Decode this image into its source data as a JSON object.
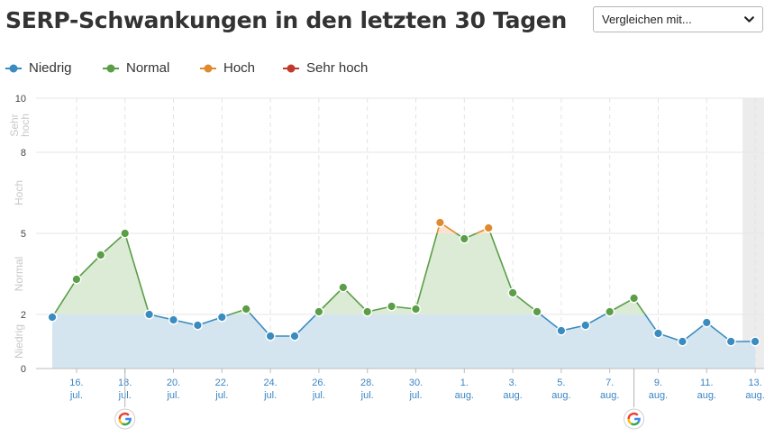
{
  "header": {
    "title": "SERP-Schwankungen in den letzten 30 Tagen",
    "compare_label": "Vergleichen mit..."
  },
  "legend": [
    {
      "label": "Niedrig",
      "color": "#3a8cc0"
    },
    {
      "label": "Normal",
      "color": "#5a9e48"
    },
    {
      "label": "Hoch",
      "color": "#e08a30"
    },
    {
      "label": "Sehr hoch",
      "color": "#c0392b"
    }
  ],
  "colors": {
    "niedrig": "#3a8cc0",
    "normal": "#5a9e48",
    "hoch": "#e08a30",
    "sehr_hoch": "#c0392b",
    "fill_low": "#d5e5f0",
    "fill_normal": "#dcebd5",
    "fill_hoch": "#fbe3cf",
    "tick_text": "#3a86c4",
    "band_text": "#c8c8c8"
  },
  "chart_data": {
    "type": "line",
    "title": "SERP-Schwankungen in den letzten 30 Tagen",
    "ylim": [
      0,
      10
    ],
    "y_ticks": [
      "0",
      "2",
      "5",
      "8",
      "10"
    ],
    "y_bands": [
      "Niedrig",
      "Normal",
      "Hoch",
      "Sehr hoch"
    ],
    "x_tick_labels": [
      [
        "16.",
        "jul."
      ],
      [
        "18.",
        "jul."
      ],
      [
        "20.",
        "jul."
      ],
      [
        "22.",
        "jul."
      ],
      [
        "24.",
        "jul."
      ],
      [
        "26.",
        "jul."
      ],
      [
        "28.",
        "jul."
      ],
      [
        "30.",
        "jul."
      ],
      [
        "1.",
        "aug."
      ],
      [
        "3.",
        "aug."
      ],
      [
        "5.",
        "aug."
      ],
      [
        "7.",
        "aug."
      ],
      [
        "9.",
        "aug."
      ],
      [
        "11.",
        "aug."
      ],
      [
        "13.",
        "aug."
      ]
    ],
    "dates": [
      "15. jul.",
      "16. jul.",
      "17. jul.",
      "18. jul.",
      "19. jul.",
      "20. jul.",
      "21. jul.",
      "22. jul.",
      "23. jul.",
      "24. jul.",
      "25. jul.",
      "26. jul.",
      "27. jul.",
      "28. jul.",
      "29. jul.",
      "30. jul.",
      "31. jul.",
      "1. aug.",
      "2. aug.",
      "3. aug.",
      "4. aug.",
      "5. aug.",
      "6. aug.",
      "7. aug.",
      "8. aug.",
      "9. aug.",
      "10. aug.",
      "11. aug.",
      "12. aug.",
      "13. aug."
    ],
    "values": [
      1.9,
      3.3,
      4.2,
      5.0,
      2.0,
      1.8,
      1.6,
      1.9,
      2.2,
      1.2,
      1.2,
      2.1,
      3.0,
      2.1,
      2.3,
      2.2,
      5.4,
      4.8,
      5.2,
      2.8,
      2.1,
      1.4,
      1.6,
      2.1,
      2.6,
      1.3,
      1.0,
      1.7,
      1.0,
      1.0
    ],
    "series": [
      {
        "name": "",
        "values_ref": "values"
      }
    ],
    "google_update_dates": [
      "18. jul.",
      "8. aug."
    ],
    "highlighted_date": "13. aug.",
    "grid": true
  }
}
